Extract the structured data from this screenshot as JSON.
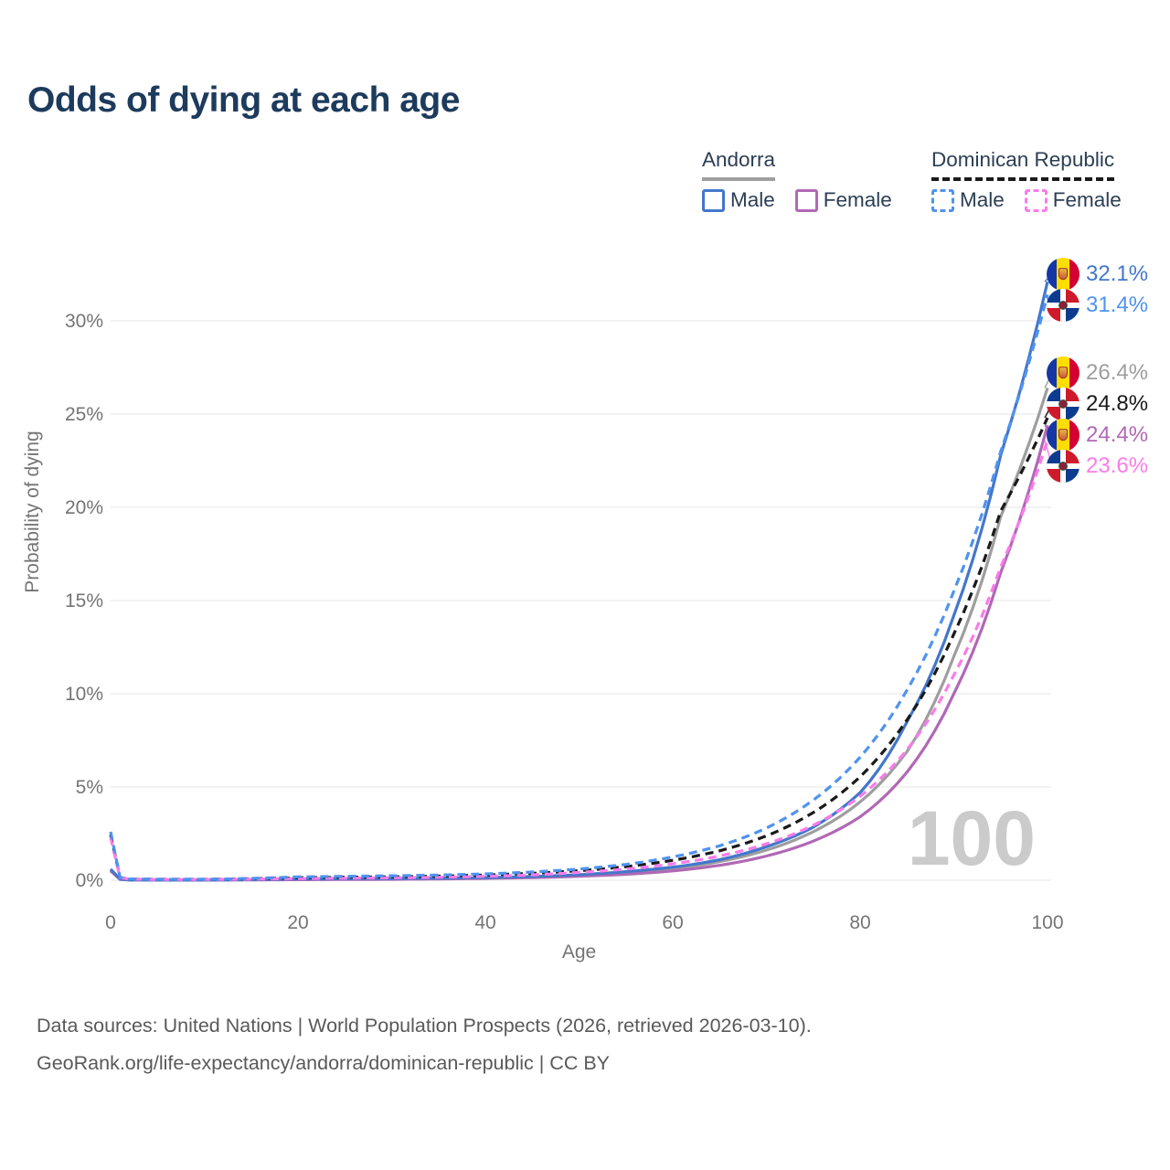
{
  "header": {
    "title": "Odds of dying at each age"
  },
  "legend": {
    "groups": [
      {
        "label": "Andorra",
        "line_style": "solid",
        "line_color": "#9e9e9e",
        "items": [
          {
            "label": "Male",
            "style": "solid",
            "color": "#4377cb"
          },
          {
            "label": "Female",
            "style": "solid",
            "color": "#b168b5"
          }
        ]
      },
      {
        "label": "Dominican Republic",
        "line_style": "dashed",
        "line_color": "#1a1a1a",
        "items": [
          {
            "label": "Male",
            "style": "dashed",
            "color": "#4f93ee"
          },
          {
            "label": "Female",
            "style": "dashed",
            "color": "#fb7bea"
          }
        ]
      }
    ]
  },
  "chart_data": {
    "type": "line",
    "title": "Odds of dying at each age",
    "xlabel": "Age",
    "ylabel": "Probability of dying",
    "xlim": [
      0,
      100
    ],
    "ylim_pct": [
      0,
      33
    ],
    "grid": "horizontal",
    "x_ticks": [
      0,
      20,
      40,
      60,
      80,
      100
    ],
    "y_ticks": [
      {
        "value": 0,
        "label": "0%"
      },
      {
        "value": 5,
        "label": "5%"
      },
      {
        "value": 10,
        "label": "10%"
      },
      {
        "value": 15,
        "label": "15%"
      },
      {
        "value": 20,
        "label": "20%"
      },
      {
        "value": 25,
        "label": "25%"
      },
      {
        "value": 30,
        "label": "30%"
      }
    ],
    "age_points": [
      0,
      1,
      2,
      5,
      10,
      15,
      20,
      25,
      30,
      35,
      40,
      45,
      50,
      55,
      60,
      65,
      70,
      75,
      80,
      85,
      90,
      95,
      100
    ],
    "series": [
      {
        "id": "andorra-both",
        "country": "Andorra",
        "sex": "Both",
        "flag": "ad",
        "color": "#9e9e9e",
        "dash": null,
        "end_label": "26.4%",
        "values": [
          0.55,
          0.05,
          0.02,
          0.01,
          0.01,
          0.03,
          0.05,
          0.06,
          0.07,
          0.09,
          0.12,
          0.17,
          0.25,
          0.4,
          0.62,
          1.0,
          1.62,
          2.6,
          4.2,
          6.9,
          12.0,
          19.5,
          26.4
        ]
      },
      {
        "id": "andorra-female",
        "country": "Andorra",
        "sex": "Female",
        "flag": "ad",
        "color": "#b168b5",
        "dash": null,
        "end_label": "24.4%",
        "values": [
          0.5,
          0.05,
          0.02,
          0.01,
          0.01,
          0.02,
          0.03,
          0.04,
          0.05,
          0.07,
          0.1,
          0.14,
          0.21,
          0.32,
          0.5,
          0.8,
          1.3,
          2.1,
          3.4,
          5.8,
          10.0,
          16.5,
          24.4
        ]
      },
      {
        "id": "andorra-male",
        "country": "Andorra",
        "sex": "Male",
        "flag": "ad",
        "color": "#4377cb",
        "dash": null,
        "end_label": "32.1%",
        "values": [
          0.6,
          0.06,
          0.02,
          0.01,
          0.01,
          0.04,
          0.07,
          0.08,
          0.09,
          0.11,
          0.14,
          0.2,
          0.3,
          0.46,
          0.7,
          1.1,
          1.8,
          2.85,
          4.7,
          8.5,
          14.2,
          22.8,
          32.1
        ]
      },
      {
        "id": "dominican-republic-both",
        "country": "Dominican Republic",
        "sex": "Both",
        "flag": "do",
        "color": "#1a1a1a",
        "dash": "9 6",
        "end_label": "24.8%",
        "values": [
          2.45,
          0.15,
          0.06,
          0.05,
          0.05,
          0.08,
          0.13,
          0.16,
          0.18,
          0.22,
          0.28,
          0.37,
          0.51,
          0.73,
          1.07,
          1.58,
          2.38,
          3.63,
          5.55,
          8.6,
          13.2,
          19.8,
          24.8
        ]
      },
      {
        "id": "dominican-republic-female",
        "country": "Dominican Republic",
        "sex": "Female",
        "flag": "do",
        "color": "#fb7bea",
        "dash": "9 6",
        "end_label": "23.6%",
        "values": [
          2.3,
          0.14,
          0.06,
          0.04,
          0.04,
          0.06,
          0.09,
          0.11,
          0.13,
          0.16,
          0.21,
          0.29,
          0.42,
          0.6,
          0.88,
          1.3,
          1.95,
          2.95,
          4.5,
          7.0,
          11.0,
          16.8,
          23.6
        ]
      },
      {
        "id": "dominican-republic-male",
        "country": "Dominican Republic",
        "sex": "Male",
        "flag": "do",
        "color": "#4f93ee",
        "dash": "9 6",
        "end_label": "31.4%",
        "values": [
          2.6,
          0.16,
          0.07,
          0.05,
          0.05,
          0.1,
          0.18,
          0.21,
          0.24,
          0.28,
          0.34,
          0.44,
          0.6,
          0.85,
          1.25,
          1.85,
          2.8,
          4.3,
          6.6,
          10.2,
          15.5,
          23.0,
          31.4
        ]
      }
    ],
    "watermark": "100"
  },
  "footer": {
    "line1": "Data sources: United Nations | World Population Prospects (2026, retrieved 2026-03-10).",
    "line2": "GeoRank.org/life-expectancy/andorra/dominican-republic | CC BY"
  }
}
